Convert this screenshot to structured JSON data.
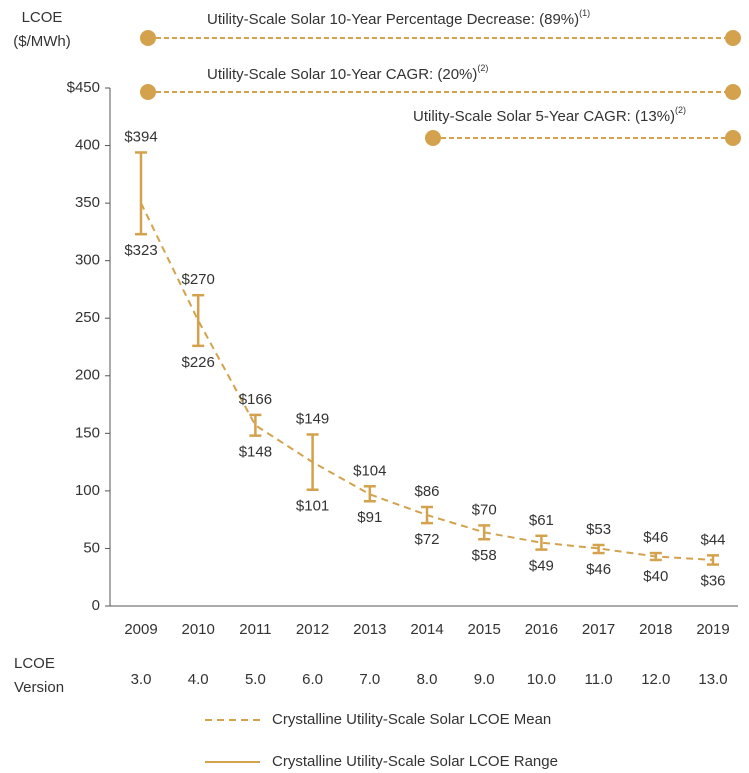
{
  "chart_data": {
    "type": "range",
    "y_label_lines": [
      "LCOE",
      "($/MWh)"
    ],
    "categories": [
      "2009",
      "2010",
      "2011",
      "2012",
      "2013",
      "2014",
      "2015",
      "2016",
      "2017",
      "2018",
      "2019"
    ],
    "row_label_lines": [
      "LCOE",
      "Version"
    ],
    "row_values": [
      "3.0",
      "4.0",
      "5.0",
      "6.0",
      "7.0",
      "8.0",
      "9.0",
      "10.0",
      "11.0",
      "12.0",
      "13.0"
    ],
    "ylim": [
      0,
      450
    ],
    "yticks": [
      0,
      50,
      100,
      150,
      200,
      250,
      300,
      350,
      400,
      {
        "value": 450,
        "label": "$450"
      }
    ],
    "color": "#d4a24c",
    "series": [
      {
        "name": "Crystalline Utility-Scale Solar LCOE Mean",
        "style": "dashed",
        "values": [
          350,
          248,
          157,
          125,
          97,
          79,
          64,
          55,
          50,
          43,
          40
        ]
      },
      {
        "name": "Crystalline Utility-Scale Solar LCOE Range",
        "style": "solid",
        "high": [
          394,
          270,
          166,
          149,
          104,
          86,
          70,
          61,
          53,
          46,
          44
        ],
        "low": [
          323,
          226,
          148,
          101,
          91,
          72,
          58,
          49,
          46,
          40,
          36
        ],
        "high_labels": [
          "$394",
          "$270",
          "$166",
          "$149",
          "$104",
          "$86",
          "$70",
          "$61",
          "$53",
          "$46",
          "$44"
        ],
        "low_labels": [
          "$323",
          "$226",
          "$148",
          "$101",
          "$91",
          "$72",
          "$58",
          "$49",
          "$46",
          "$40",
          "$36"
        ]
      }
    ],
    "annotations": [
      {
        "text": "Utility-Scale Solar 10-Year Percentage Decrease: (89%)",
        "sup": "(1)"
      },
      {
        "text": "Utility-Scale Solar 10-Year CAGR: (20%)",
        "sup": "(2)"
      },
      {
        "text": "Utility-Scale Solar 5-Year CAGR: (13%)",
        "sup": "(2)"
      }
    ]
  }
}
